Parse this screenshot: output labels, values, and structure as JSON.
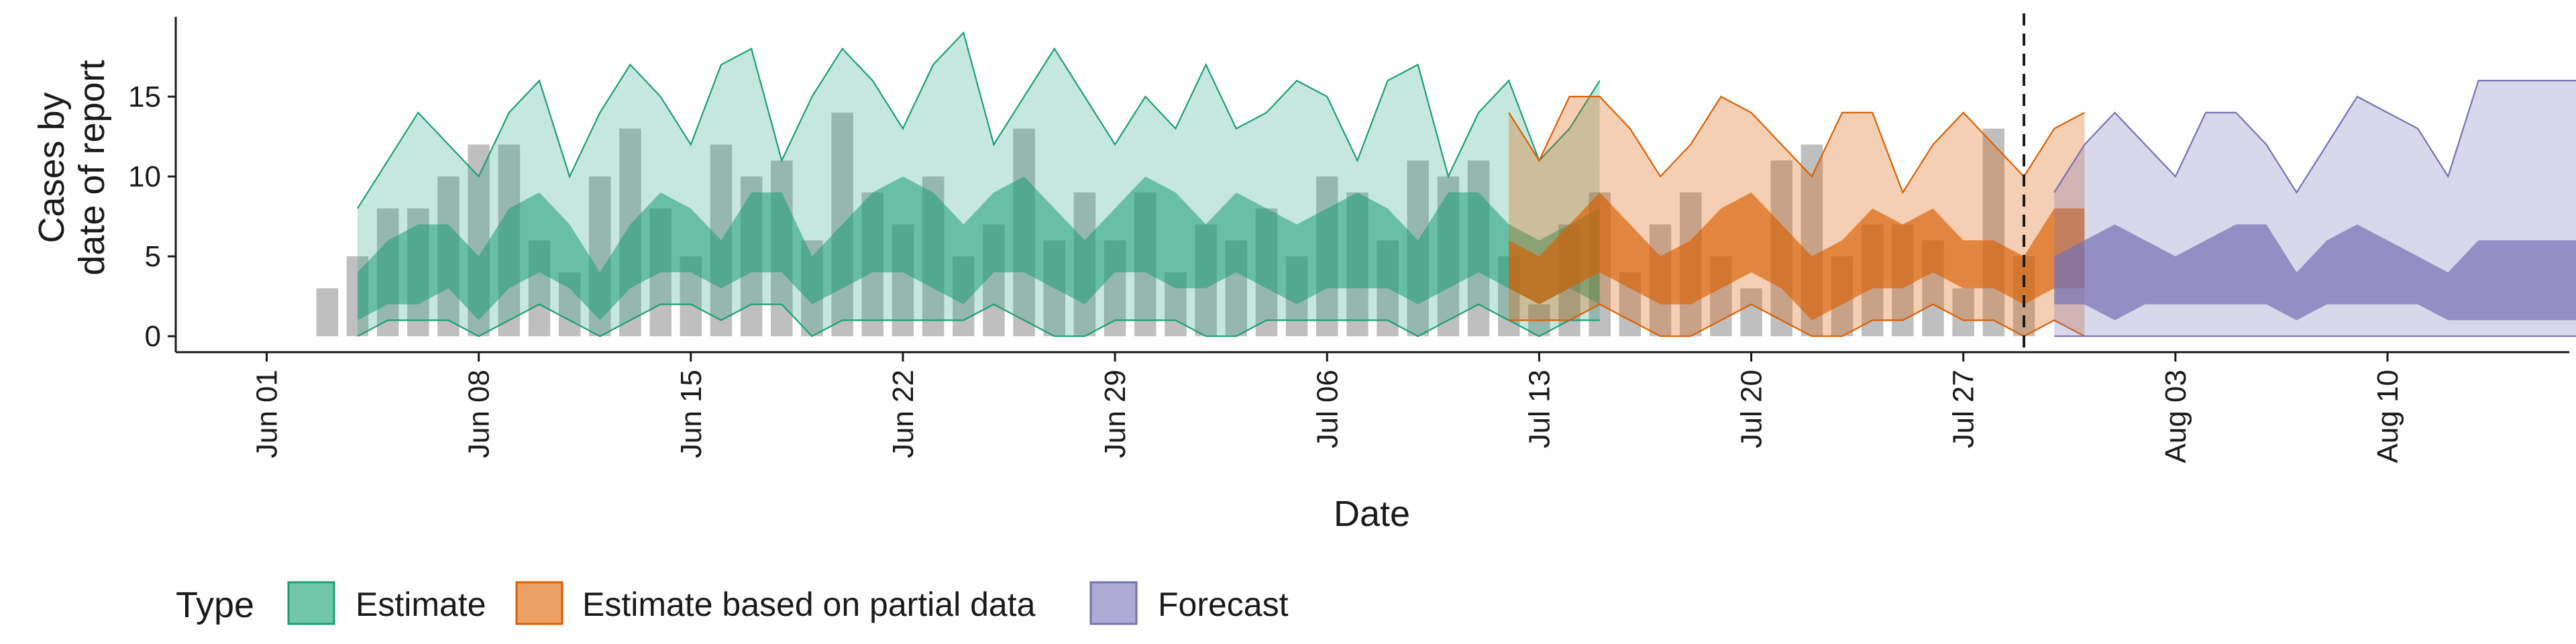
{
  "chart_data": {
    "type": "area",
    "xlabel": "Date",
    "ylabel_lines": [
      "Cases by",
      "date of report"
    ],
    "y_ticks": [
      0,
      5,
      10,
      15
    ],
    "ylim": [
      -1,
      20
    ],
    "x_range": [
      "2020-05-29",
      "2020-08-16"
    ],
    "x_ticks": [
      {
        "date": "2020-06-01",
        "label": "Jun 01"
      },
      {
        "date": "2020-06-08",
        "label": "Jun 08"
      },
      {
        "date": "2020-06-15",
        "label": "Jun 15"
      },
      {
        "date": "2020-06-22",
        "label": "Jun 22"
      },
      {
        "date": "2020-06-29",
        "label": "Jun 29"
      },
      {
        "date": "2020-07-06",
        "label": "Jul 06"
      },
      {
        "date": "2020-07-13",
        "label": "Jul 13"
      },
      {
        "date": "2020-07-20",
        "label": "Jul 20"
      },
      {
        "date": "2020-07-27",
        "label": "Jul 27"
      },
      {
        "date": "2020-08-03",
        "label": "Aug 03"
      },
      {
        "date": "2020-08-10",
        "label": "Aug 10"
      }
    ],
    "grid": false,
    "legend_position": "bottom-left",
    "vline_date": "2020-07-29",
    "legend": {
      "title": "Type",
      "items": [
        {
          "label": "Estimate",
          "fill": "#72c6a9",
          "stroke": "#1b9e77"
        },
        {
          "label": "Estimate based on partial data",
          "fill": "#eda063",
          "stroke": "#d95f02"
        },
        {
          "label": "Forecast",
          "fill": "#aeaad6",
          "stroke": "#7570b3"
        }
      ]
    },
    "reported_cases": {
      "start": "2020-06-03",
      "values": [
        3,
        5,
        8,
        8,
        10,
        12,
        12,
        6,
        4,
        10,
        13,
        8,
        5,
        12,
        10,
        11,
        6,
        14,
        9,
        7,
        10,
        5,
        7,
        13,
        6,
        9,
        6,
        9,
        4,
        7,
        6,
        8,
        5,
        10,
        9,
        6,
        11,
        10,
        11,
        5,
        2,
        7,
        9,
        4,
        7,
        9,
        5,
        3,
        11,
        12,
        5,
        7,
        7,
        6,
        3,
        13,
        5
      ]
    },
    "series": [
      {
        "name": "Estimate",
        "start": "2020-06-04",
        "color": "#1b9e77",
        "outer_fill_opacity": 0.25,
        "inner_fill_opacity": 0.55,
        "lower90": [
          0,
          1,
          1,
          1,
          0,
          1,
          2,
          1,
          0,
          1,
          2,
          2,
          1,
          2,
          2,
          0,
          1,
          1,
          1,
          1,
          1,
          2,
          1,
          0,
          0,
          1,
          1,
          1,
          0,
          0,
          1,
          1,
          1,
          1,
          1,
          0,
          1,
          2,
          1,
          0,
          1,
          1
        ],
        "lower50": [
          1,
          2,
          2,
          3,
          1,
          3,
          4,
          3,
          1,
          3,
          4,
          4,
          3,
          4,
          4,
          2,
          3,
          4,
          4,
          3,
          2,
          4,
          4,
          3,
          2,
          4,
          4,
          3,
          3,
          4,
          3,
          2,
          3,
          3,
          3,
          2,
          3,
          4,
          3,
          2,
          3,
          2
        ],
        "upper50": [
          4,
          6,
          7,
          7,
          5,
          8,
          9,
          7,
          4,
          7,
          9,
          8,
          6,
          9,
          9,
          5,
          7,
          9,
          10,
          9,
          7,
          9,
          10,
          8,
          6,
          8,
          10,
          9,
          7,
          9,
          8,
          7,
          8,
          9,
          8,
          6,
          9,
          9,
          7,
          6,
          7,
          8
        ],
        "upper90": [
          8,
          11,
          14,
          12,
          10,
          14,
          16,
          10,
          14,
          17,
          15,
          12,
          17,
          18,
          11,
          15,
          18,
          16,
          13,
          17,
          19,
          12,
          15,
          18,
          15,
          12,
          15,
          13,
          17,
          13,
          14,
          16,
          15,
          11,
          16,
          17,
          10,
          14,
          16,
          11,
          13,
          16
        ]
      },
      {
        "name": "Estimate based on partial data",
        "start": "2020-07-12",
        "color": "#d95f02",
        "outer_fill_opacity": 0.3,
        "inner_fill_opacity": 0.65,
        "lower90": [
          1,
          1,
          1,
          2,
          1,
          0,
          0,
          1,
          2,
          1,
          0,
          0,
          1,
          1,
          2,
          1,
          1,
          0,
          1,
          0
        ],
        "lower50": [
          3,
          2,
          3,
          4,
          3,
          2,
          2,
          3,
          4,
          3,
          1,
          2,
          3,
          3,
          4,
          3,
          3,
          2,
          3,
          3
        ],
        "upper50": [
          6,
          5,
          7,
          9,
          7,
          5,
          6,
          8,
          9,
          7,
          5,
          6,
          8,
          7,
          8,
          6,
          6,
          5,
          8,
          8
        ],
        "upper90": [
          14,
          11,
          15,
          15,
          13,
          10,
          12,
          15,
          14,
          12,
          10,
          14,
          14,
          9,
          12,
          14,
          12,
          10,
          13,
          14
        ]
      },
      {
        "name": "Forecast",
        "start": "2020-07-30",
        "color": "#7570b3",
        "outer_fill_opacity": 0.28,
        "inner_fill_opacity": 0.7,
        "lower90": [
          0,
          0,
          0,
          0,
          0,
          0,
          0,
          0,
          0,
          0,
          0,
          0,
          0,
          0,
          0,
          0,
          0,
          0,
          0,
          0
        ],
        "lower50": [
          2,
          2,
          1,
          2,
          2,
          2,
          2,
          2,
          1,
          2,
          2,
          2,
          2,
          1,
          1,
          1,
          1,
          1,
          1,
          1
        ],
        "upper50": [
          5,
          6,
          7,
          6,
          5,
          6,
          7,
          7,
          4,
          6,
          7,
          6,
          5,
          4,
          6,
          6,
          6,
          6,
          6,
          6
        ],
        "upper90": [
          9,
          12,
          14,
          12,
          10,
          14,
          14,
          12,
          9,
          12,
          15,
          14,
          13,
          10,
          16,
          16,
          16,
          16,
          16,
          16
        ]
      }
    ]
  }
}
